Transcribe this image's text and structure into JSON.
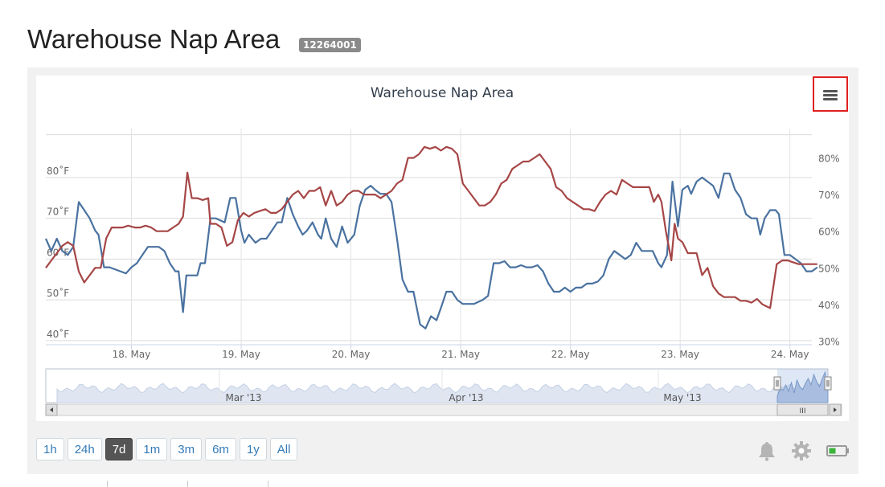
{
  "page": {
    "title": "Warehouse Nap Area",
    "badge": "12264001"
  },
  "range_buttons": [
    {
      "label": "1h"
    },
    {
      "label": "24h"
    },
    {
      "label": "7d",
      "active": true
    },
    {
      "label": "1m"
    },
    {
      "label": "3m"
    },
    {
      "label": "6m"
    },
    {
      "label": "1y"
    },
    {
      "label": "All"
    }
  ],
  "toolbar_icons": [
    "bell-icon",
    "gear-icon",
    "battery-icon"
  ],
  "colors": {
    "temperature": "#4a72a0",
    "humidity": "#a64646",
    "navigator": "#a8bde0",
    "battery": "#3cb43c"
  },
  "chart_data": {
    "type": "line",
    "title": "Warehouse Nap Area",
    "x_start_label": "17.25 May",
    "x_tick_labels": [
      "18. May",
      "19. May",
      "20. May",
      "21. May",
      "22. May",
      "23. May",
      "24. May"
    ],
    "x_ticks": [
      18,
      19,
      20,
      21,
      22,
      23,
      24
    ],
    "x_range": [
      17.22,
      24.2
    ],
    "y_left": {
      "ticks": [
        40,
        50,
        60,
        70,
        80
      ],
      "tick_labels": [
        "40˚F",
        "50˚F",
        "60˚F",
        "70˚F",
        "80˚F"
      ],
      "range": [
        39,
        92
      ]
    },
    "y_right": {
      "ticks": [
        30,
        40,
        50,
        60,
        70,
        80
      ],
      "tick_labels": [
        "30%",
        "40%",
        "50%",
        "60%",
        "70%",
        "80%"
      ],
      "range": [
        29,
        88
      ]
    },
    "grid": true,
    "series": [
      {
        "axis": "left",
        "points": [
          [
            17.22,
            65
          ],
          [
            17.27,
            62
          ],
          [
            17.32,
            65
          ],
          [
            17.37,
            62
          ],
          [
            17.42,
            61
          ],
          [
            17.47,
            63
          ],
          [
            17.52,
            74
          ],
          [
            17.57,
            72
          ],
          [
            17.62,
            70
          ],
          [
            17.67,
            67
          ],
          [
            17.7,
            66
          ],
          [
            17.75,
            58
          ],
          [
            17.8,
            58
          ],
          [
            17.85,
            57.5
          ],
          [
            17.9,
            57
          ],
          [
            17.95,
            56.5
          ],
          [
            18.0,
            58
          ],
          [
            18.05,
            59
          ],
          [
            18.1,
            61
          ],
          [
            18.15,
            63
          ],
          [
            18.2,
            63
          ],
          [
            18.25,
            63
          ],
          [
            18.3,
            62
          ],
          [
            18.35,
            59
          ],
          [
            18.4,
            57
          ],
          [
            18.43,
            57
          ],
          [
            18.47,
            47
          ],
          [
            18.5,
            56
          ],
          [
            18.55,
            56
          ],
          [
            18.6,
            56
          ],
          [
            18.63,
            59
          ],
          [
            18.67,
            59
          ],
          [
            18.72,
            70
          ],
          [
            18.77,
            70
          ],
          [
            18.85,
            69
          ],
          [
            18.9,
            75
          ],
          [
            18.95,
            75
          ],
          [
            19.0,
            67
          ],
          [
            19.03,
            64
          ],
          [
            19.07,
            66
          ],
          [
            19.13,
            64
          ],
          [
            19.18,
            65
          ],
          [
            19.23,
            65
          ],
          [
            19.28,
            67
          ],
          [
            19.33,
            69
          ],
          [
            19.37,
            69
          ],
          [
            19.42,
            75
          ],
          [
            19.47,
            71
          ],
          [
            19.52,
            68
          ],
          [
            19.56,
            66
          ],
          [
            19.6,
            67
          ],
          [
            19.65,
            69
          ],
          [
            19.7,
            66
          ],
          [
            19.73,
            65
          ],
          [
            19.77,
            70
          ],
          [
            19.82,
            65
          ],
          [
            19.87,
            63
          ],
          [
            19.92,
            68
          ],
          [
            19.97,
            64
          ],
          [
            20.03,
            66
          ],
          [
            20.08,
            73
          ],
          [
            20.13,
            77
          ],
          [
            20.18,
            78
          ],
          [
            20.22,
            77
          ],
          [
            20.27,
            76
          ],
          [
            20.32,
            76
          ],
          [
            20.37,
            74
          ],
          [
            20.42,
            65
          ],
          [
            20.47,
            55
          ],
          [
            20.52,
            52
          ],
          [
            20.57,
            52
          ],
          [
            20.63,
            44
          ],
          [
            20.68,
            43
          ],
          [
            20.73,
            46
          ],
          [
            20.78,
            45
          ],
          [
            20.82,
            48
          ],
          [
            20.87,
            52
          ],
          [
            20.92,
            52
          ],
          [
            20.97,
            50
          ],
          [
            21.02,
            49
          ],
          [
            21.07,
            49
          ],
          [
            21.12,
            49
          ],
          [
            21.2,
            50
          ],
          [
            21.25,
            51
          ],
          [
            21.3,
            59
          ],
          [
            21.35,
            59
          ],
          [
            21.4,
            59.5
          ],
          [
            21.45,
            58
          ],
          [
            21.5,
            58
          ],
          [
            21.55,
            58.5
          ],
          [
            21.6,
            58
          ],
          [
            21.65,
            58
          ],
          [
            21.7,
            58.5
          ],
          [
            21.75,
            57
          ],
          [
            21.8,
            54
          ],
          [
            21.85,
            52
          ],
          [
            21.9,
            52
          ],
          [
            21.95,
            53
          ],
          [
            22.0,
            52
          ],
          [
            22.05,
            53
          ],
          [
            22.1,
            53
          ],
          [
            22.15,
            54
          ],
          [
            22.2,
            54
          ],
          [
            22.25,
            54.5
          ],
          [
            22.3,
            56
          ],
          [
            22.35,
            60
          ],
          [
            22.4,
            62
          ],
          [
            22.45,
            61
          ],
          [
            22.5,
            60
          ],
          [
            22.55,
            61
          ],
          [
            22.6,
            64
          ],
          [
            22.65,
            62
          ],
          [
            22.7,
            62
          ],
          [
            22.75,
            62
          ],
          [
            22.8,
            59
          ],
          [
            22.83,
            58
          ],
          [
            22.88,
            61
          ],
          [
            22.93,
            79
          ],
          [
            22.98,
            68
          ],
          [
            23.02,
            77
          ],
          [
            23.07,
            78
          ],
          [
            23.1,
            76
          ],
          [
            23.15,
            79
          ],
          [
            23.2,
            80
          ],
          [
            23.25,
            79
          ],
          [
            23.3,
            78
          ],
          [
            23.35,
            75
          ],
          [
            23.4,
            81
          ],
          [
            23.45,
            81
          ],
          [
            23.5,
            77
          ],
          [
            23.55,
            75
          ],
          [
            23.6,
            71
          ],
          [
            23.65,
            70
          ],
          [
            23.7,
            70
          ],
          [
            23.73,
            66
          ],
          [
            23.77,
            70
          ],
          [
            23.82,
            72
          ],
          [
            23.87,
            72
          ],
          [
            23.9,
            71
          ],
          [
            23.95,
            61
          ],
          [
            24.0,
            61
          ],
          [
            24.05,
            60
          ],
          [
            24.1,
            59
          ],
          [
            24.15,
            57
          ],
          [
            24.2,
            57
          ],
          [
            24.25,
            58
          ]
        ]
      },
      {
        "axis": "right",
        "points": [
          [
            17.22,
            50
          ],
          [
            17.27,
            52
          ],
          [
            17.32,
            54
          ],
          [
            17.37,
            56
          ],
          [
            17.42,
            57
          ],
          [
            17.47,
            56
          ],
          [
            17.52,
            49
          ],
          [
            17.57,
            46
          ],
          [
            17.62,
            48
          ],
          [
            17.67,
            50
          ],
          [
            17.72,
            50
          ],
          [
            17.77,
            58
          ],
          [
            17.82,
            61
          ],
          [
            17.87,
            61
          ],
          [
            17.92,
            61
          ],
          [
            17.97,
            61.5
          ],
          [
            18.03,
            61
          ],
          [
            18.08,
            61
          ],
          [
            18.13,
            61.5
          ],
          [
            18.18,
            61
          ],
          [
            18.23,
            60
          ],
          [
            18.28,
            60
          ],
          [
            18.33,
            60
          ],
          [
            18.38,
            61
          ],
          [
            18.43,
            62
          ],
          [
            18.47,
            64
          ],
          [
            18.51,
            76
          ],
          [
            18.55,
            69
          ],
          [
            18.6,
            69
          ],
          [
            18.65,
            68.5
          ],
          [
            18.7,
            69
          ],
          [
            18.72,
            62
          ],
          [
            18.77,
            62
          ],
          [
            18.82,
            61
          ],
          [
            18.87,
            56
          ],
          [
            18.92,
            57
          ],
          [
            18.97,
            63
          ],
          [
            19.02,
            65
          ],
          [
            19.07,
            64
          ],
          [
            19.12,
            65
          ],
          [
            19.17,
            65.5
          ],
          [
            19.22,
            66
          ],
          [
            19.27,
            65
          ],
          [
            19.32,
            65
          ],
          [
            19.37,
            66
          ],
          [
            19.42,
            68
          ],
          [
            19.47,
            70
          ],
          [
            19.52,
            71
          ],
          [
            19.57,
            69
          ],
          [
            19.62,
            71
          ],
          [
            19.67,
            71
          ],
          [
            19.72,
            72
          ],
          [
            19.77,
            67
          ],
          [
            19.82,
            71
          ],
          [
            19.87,
            67
          ],
          [
            19.92,
            68
          ],
          [
            19.97,
            70
          ],
          [
            20.02,
            71
          ],
          [
            20.07,
            71
          ],
          [
            20.12,
            70
          ],
          [
            20.17,
            70
          ],
          [
            20.22,
            70
          ],
          [
            20.27,
            69
          ],
          [
            20.32,
            70
          ],
          [
            20.37,
            71
          ],
          [
            20.42,
            73
          ],
          [
            20.47,
            74
          ],
          [
            20.52,
            80
          ],
          [
            20.57,
            80
          ],
          [
            20.62,
            81
          ],
          [
            20.67,
            83
          ],
          [
            20.72,
            82.5
          ],
          [
            20.77,
            83
          ],
          [
            20.82,
            82
          ],
          [
            20.87,
            83
          ],
          [
            20.92,
            82.5
          ],
          [
            20.97,
            81
          ],
          [
            21.02,
            73
          ],
          [
            21.07,
            71
          ],
          [
            21.12,
            69
          ],
          [
            21.17,
            67
          ],
          [
            21.22,
            67
          ],
          [
            21.27,
            68
          ],
          [
            21.32,
            70
          ],
          [
            21.37,
            73
          ],
          [
            21.42,
            74
          ],
          [
            21.47,
            77
          ],
          [
            21.52,
            78
          ],
          [
            21.57,
            79
          ],
          [
            21.62,
            79
          ],
          [
            21.67,
            80
          ],
          [
            21.72,
            81
          ],
          [
            21.77,
            79
          ],
          [
            21.82,
            77
          ],
          [
            21.87,
            72
          ],
          [
            21.92,
            71
          ],
          [
            21.97,
            69
          ],
          [
            22.02,
            68
          ],
          [
            22.07,
            67
          ],
          [
            22.12,
            66
          ],
          [
            22.17,
            66
          ],
          [
            22.22,
            65.5
          ],
          [
            22.27,
            68
          ],
          [
            22.32,
            70
          ],
          [
            22.37,
            71
          ],
          [
            22.42,
            70
          ],
          [
            22.47,
            74
          ],
          [
            22.52,
            73
          ],
          [
            22.57,
            72
          ],
          [
            22.62,
            72
          ],
          [
            22.67,
            72
          ],
          [
            22.72,
            72
          ],
          [
            22.76,
            68
          ],
          [
            22.8,
            70
          ],
          [
            22.83,
            68
          ],
          [
            22.87,
            60
          ],
          [
            22.92,
            52
          ],
          [
            22.95,
            62
          ],
          [
            22.98,
            58
          ],
          [
            23.02,
            57
          ],
          [
            23.07,
            54
          ],
          [
            23.1,
            54
          ],
          [
            23.15,
            54
          ],
          [
            23.2,
            48
          ],
          [
            23.25,
            50
          ],
          [
            23.3,
            45
          ],
          [
            23.35,
            43
          ],
          [
            23.4,
            42
          ],
          [
            23.45,
            42
          ],
          [
            23.5,
            42
          ],
          [
            23.55,
            41
          ],
          [
            23.6,
            41
          ],
          [
            23.65,
            40.5
          ],
          [
            23.7,
            41.5
          ],
          [
            23.75,
            40
          ],
          [
            23.82,
            39
          ],
          [
            23.88,
            51
          ],
          [
            23.93,
            52
          ],
          [
            23.98,
            52
          ],
          [
            24.03,
            51.5
          ],
          [
            24.08,
            51
          ],
          [
            24.15,
            51
          ],
          [
            24.25,
            51
          ]
        ]
      }
    ]
  },
  "navigator": {
    "labels": [
      "Mar '13",
      "Apr '13",
      "May '13"
    ],
    "scrollbar_grip": "III"
  }
}
